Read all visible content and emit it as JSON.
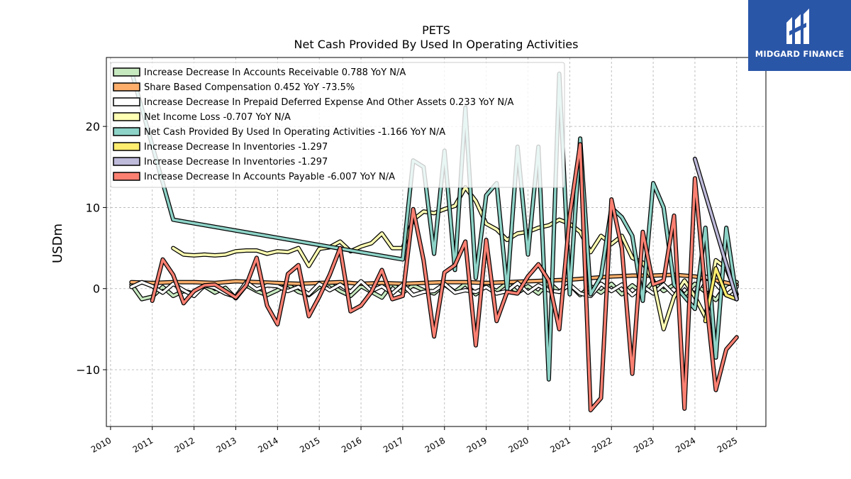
{
  "branding": {
    "logo_text": "MIDGARD FINANCE",
    "logo_icon": "midgard-m-icon",
    "logo_color": "#2a56a8"
  },
  "chart_data": {
    "type": "line",
    "title": "PETS",
    "subtitle": "Net Cash Provided By Used In Operating Activities",
    "ylabel": "USDm",
    "xlabel": "",
    "xlim": [
      2009.9,
      2025.7
    ],
    "ylim": [
      -17,
      28.5
    ],
    "yticks": [
      -10,
      0,
      10,
      20
    ],
    "ytick_labels": [
      "−10",
      "0",
      "10",
      "20"
    ],
    "xticks": [
      2010,
      2011,
      2012,
      2013,
      2014,
      2015,
      2016,
      2017,
      2018,
      2019,
      2020,
      2021,
      2022,
      2023,
      2024,
      2025
    ],
    "grid": true,
    "legend_position": "upper-left",
    "series": [
      {
        "name": "Increase Decrease In Accounts Receivable  0.788 YoY N/A",
        "color": "#c7e9c0",
        "x": [
          2010.5,
          2010.75,
          2011.0,
          2011.25,
          2011.5,
          2011.75,
          2012.0,
          2012.25,
          2012.5,
          2012.75,
          2013.0,
          2013.25,
          2013.5,
          2013.75,
          2014.0,
          2014.25,
          2014.5,
          2014.75,
          2015.0,
          2015.25,
          2015.5,
          2015.75,
          2016.0,
          2016.25,
          2016.5,
          2016.75,
          2017.0,
          2017.25,
          2017.5,
          2017.75,
          2018.0,
          2018.25,
          2018.5,
          2018.75,
          2019.0,
          2019.25,
          2019.5,
          2019.75,
          2020.0,
          2020.25,
          2020.5,
          2020.75,
          2021.0,
          2021.25,
          2021.5,
          2021.75,
          2022.0,
          2022.25,
          2022.5,
          2022.75,
          2023.0,
          2023.25,
          2023.5,
          2023.75,
          2024.0,
          2024.25,
          2024.5,
          2024.75,
          2025.0
        ],
        "y": [
          0.5,
          -1.3,
          -1.0,
          0.2,
          -0.9,
          -0.3,
          -0.6,
          0.3,
          -0.5,
          0.1,
          -1.2,
          0.4,
          -0.3,
          -0.8,
          -0.2,
          0.5,
          -0.4,
          -0.8,
          0.2,
          0.6,
          -0.3,
          -0.9,
          0.3,
          -0.4,
          -1.1,
          0.6,
          -0.5,
          0.4,
          -0.2,
          -0.6,
          0.5,
          -0.4,
          0.6,
          -0.7,
          0.4,
          -0.3,
          0.7,
          -0.5,
          0.3,
          -0.6,
          0.8,
          -0.4,
          0.5,
          -0.8,
          0.3,
          -0.5,
          0.6,
          -0.7,
          0.4,
          -0.6,
          0.9,
          -0.3,
          0.5,
          -0.8,
          0.6,
          -0.4,
          -1.4,
          0.5,
          0.8
        ]
      },
      {
        "name": "Share Based Compensation  0.452 YoY -73.5%",
        "color": "#fdae6b",
        "x": [
          2010.5,
          2011.0,
          2011.5,
          2012.0,
          2012.5,
          2013.0,
          2013.5,
          2014.0,
          2014.5,
          2015.0,
          2015.5,
          2016.0,
          2016.5,
          2017.0,
          2017.5,
          2018.0,
          2018.5,
          2019.0,
          2019.5,
          2020.0,
          2020.5,
          2021.0,
          2021.5,
          2022.0,
          2022.5,
          2023.0,
          2023.5,
          2024.0,
          2024.5,
          2025.0
        ],
        "y": [
          0.8,
          0.7,
          0.8,
          0.8,
          0.7,
          0.9,
          0.8,
          0.7,
          0.6,
          0.7,
          0.8,
          0.6,
          0.7,
          0.6,
          0.7,
          0.8,
          0.8,
          0.7,
          0.8,
          0.9,
          1.0,
          1.1,
          1.3,
          1.5,
          1.6,
          1.6,
          1.7,
          1.5,
          1.0,
          0.45
        ]
      },
      {
        "name": "Increase Decrease In Prepaid Deferred Expense And Other Assets  0.233 YoY N/A",
        "color": "#ffffff",
        "x": [
          2010.5,
          2010.75,
          2011.0,
          2011.25,
          2011.5,
          2011.75,
          2012.0,
          2012.25,
          2012.5,
          2012.75,
          2013.0,
          2013.25,
          2013.5,
          2013.75,
          2014.0,
          2014.25,
          2014.5,
          2014.75,
          2015.0,
          2015.25,
          2015.5,
          2015.75,
          2016.0,
          2016.25,
          2016.5,
          2016.75,
          2017.0,
          2017.25,
          2017.5,
          2017.75,
          2018.0,
          2018.25,
          2018.5,
          2018.75,
          2019.0,
          2019.25,
          2019.5,
          2019.75,
          2020.0,
          2020.25,
          2020.5,
          2020.75,
          2021.0,
          2021.25,
          2021.5,
          2021.75,
          2022.0,
          2022.25,
          2022.5,
          2022.75,
          2023.0,
          2023.25,
          2023.5,
          2023.75,
          2024.0,
          2024.25,
          2024.5,
          2024.75,
          2025.0
        ],
        "y": [
          0.2,
          0.8,
          0.3,
          -0.5,
          0.6,
          -0.2,
          -0.9,
          0.4,
          0.1,
          -0.6,
          -1.0,
          0.8,
          -0.1,
          0.4,
          0.3,
          -0.3,
          0.2,
          -0.7,
          0.6,
          -0.2,
          0.5,
          -0.4,
          0.9,
          -0.3,
          0.3,
          -0.6,
          0.5,
          -0.8,
          -0.4,
          -0.3,
          0.6,
          -0.5,
          -0.2,
          -0.4,
          0.2,
          -0.6,
          -0.3,
          0.7,
          -0.5,
          0.4,
          -0.2,
          -0.4,
          0.5,
          -0.6,
          -0.9,
          0.6,
          -0.3,
          0.5,
          -0.8,
          0.3,
          -0.6,
          0.5,
          -0.8,
          0.4,
          -0.7,
          1.5,
          0.6,
          -0.8,
          0.23
        ]
      },
      {
        "name": "Net Income Loss  -0.707 YoY N/A",
        "color": "#ffffb3",
        "x": [
          2011.5,
          2011.75,
          2012.0,
          2012.25,
          2012.5,
          2012.75,
          2013.0,
          2013.25,
          2013.5,
          2013.75,
          2014.0,
          2014.25,
          2014.5,
          2014.75,
          2015.0,
          2015.25,
          2015.5,
          2015.75,
          2016.0,
          2016.25,
          2016.5,
          2016.75,
          2017.0,
          2017.25,
          2017.5,
          2017.75,
          2018.0,
          2018.25,
          2018.5,
          2018.75,
          2019.0,
          2019.25,
          2019.5,
          2019.75,
          2020.0,
          2020.25,
          2020.5,
          2020.75,
          2021.0,
          2021.25,
          2021.5,
          2021.75,
          2022.0,
          2022.25,
          2022.5,
          2022.75,
          2023.0,
          2023.25,
          2023.5,
          2023.75,
          2024.0,
          2024.25,
          2024.5,
          2024.75,
          2025.0
        ],
        "y": [
          5.0,
          4.2,
          4.1,
          4.2,
          4.1,
          4.2,
          4.6,
          4.7,
          4.7,
          4.3,
          4.6,
          4.5,
          5.0,
          2.8,
          4.9,
          5.1,
          5.8,
          4.6,
          5.2,
          5.6,
          6.8,
          5.0,
          5.0,
          8.5,
          9.5,
          9.3,
          9.8,
          10.2,
          12.5,
          10.8,
          8.0,
          7.3,
          6.0,
          6.8,
          7.0,
          7.5,
          7.8,
          8.5,
          8.0,
          7.0,
          4.5,
          6.5,
          5.5,
          6.5,
          3.8,
          3.2,
          1.0,
          -5.0,
          -1.0,
          1.0,
          -1.0,
          -3.5,
          3.5,
          2.5,
          -0.7
        ]
      },
      {
        "name": "Net Cash Provided By Used In Operating Activities  -1.166 YoY N/A",
        "color": "#8dd3c7",
        "x": [
          2010.5,
          2011.5,
          2017.0,
          2017.25,
          2017.5,
          2017.75,
          2018.0,
          2018.25,
          2018.5,
          2018.75,
          2019.0,
          2019.25,
          2019.5,
          2019.75,
          2020.0,
          2020.25,
          2020.5,
          2020.75,
          2021.0,
          2021.25,
          2021.5,
          2021.75,
          2022.0,
          2022.25,
          2022.5,
          2022.75,
          2023.0,
          2023.25,
          2023.5,
          2023.75,
          2024.0,
          2024.25,
          2024.5,
          2024.75,
          2025.0
        ],
        "y": [
          26.8,
          8.5,
          3.6,
          15.8,
          15.0,
          4.3,
          17.0,
          2.3,
          22.3,
          1.3,
          11.5,
          13.0,
          -0.2,
          17.5,
          4.2,
          17.5,
          -11.2,
          26.5,
          -0.7,
          18.5,
          -0.7,
          1.5,
          10.0,
          8.8,
          6.5,
          -1.5,
          13.0,
          10.0,
          0.5,
          -1.0,
          -2.5,
          7.5,
          -8.5,
          7.5,
          -1.2
        ]
      },
      {
        "name": "Increase Decrease In Inventories  -1.297",
        "color": "#ffed6f",
        "x": [
          2024.25,
          2024.5,
          2024.75,
          2025.0
        ],
        "y": [
          -4.0,
          2.5,
          -0.8,
          -1.3
        ]
      },
      {
        "name": "Increase Decrease In Inventories  -1.297",
        "color": "#bebada",
        "x": [
          2024.0,
          2025.0
        ],
        "y": [
          16.0,
          -1.3
        ]
      },
      {
        "name": "Increase Decrease In Accounts Payable  -6.007 YoY N/A",
        "color": "#fb8072",
        "x": [
          2011.0,
          2011.25,
          2011.5,
          2011.75,
          2012.0,
          2012.25,
          2012.5,
          2012.75,
          2013.0,
          2013.25,
          2013.5,
          2013.75,
          2014.0,
          2014.25,
          2014.5,
          2014.75,
          2015.0,
          2015.25,
          2015.5,
          2015.75,
          2016.0,
          2016.25,
          2016.5,
          2016.75,
          2017.0,
          2017.25,
          2017.5,
          2017.75,
          2018.0,
          2018.25,
          2018.5,
          2018.75,
          2019.0,
          2019.25,
          2019.5,
          2019.75,
          2020.0,
          2020.25,
          2020.5,
          2020.75,
          2021.0,
          2021.25,
          2021.5,
          2021.75,
          2022.0,
          2022.25,
          2022.5,
          2022.75,
          2023.0,
          2023.25,
          2023.5,
          2023.75,
          2024.0,
          2024.25,
          2024.5,
          2024.75,
          2025.0
        ],
        "y": [
          -1.5,
          3.6,
          1.7,
          -1.8,
          -0.3,
          0.4,
          0.5,
          -0.3,
          -1.1,
          0.4,
          3.8,
          -2.1,
          -4.4,
          1.8,
          2.9,
          -3.4,
          -1.0,
          1.7,
          5.0,
          -2.8,
          -2.1,
          -0.4,
          2.3,
          -1.3,
          -0.9,
          9.8,
          3.5,
          -5.9,
          2.0,
          2.9,
          5.8,
          -7.0,
          6.0,
          -4.0,
          -0.4,
          -0.6,
          1.5,
          3.0,
          1.0,
          -5.0,
          9.0,
          17.8,
          -15.0,
          -13.5,
          11.0,
          5.0,
          -10.5,
          7.0,
          0.5,
          1.0,
          9.0,
          -14.8,
          13.6,
          -0.5,
          -12.5,
          -7.5,
          -6.0
        ]
      }
    ]
  }
}
